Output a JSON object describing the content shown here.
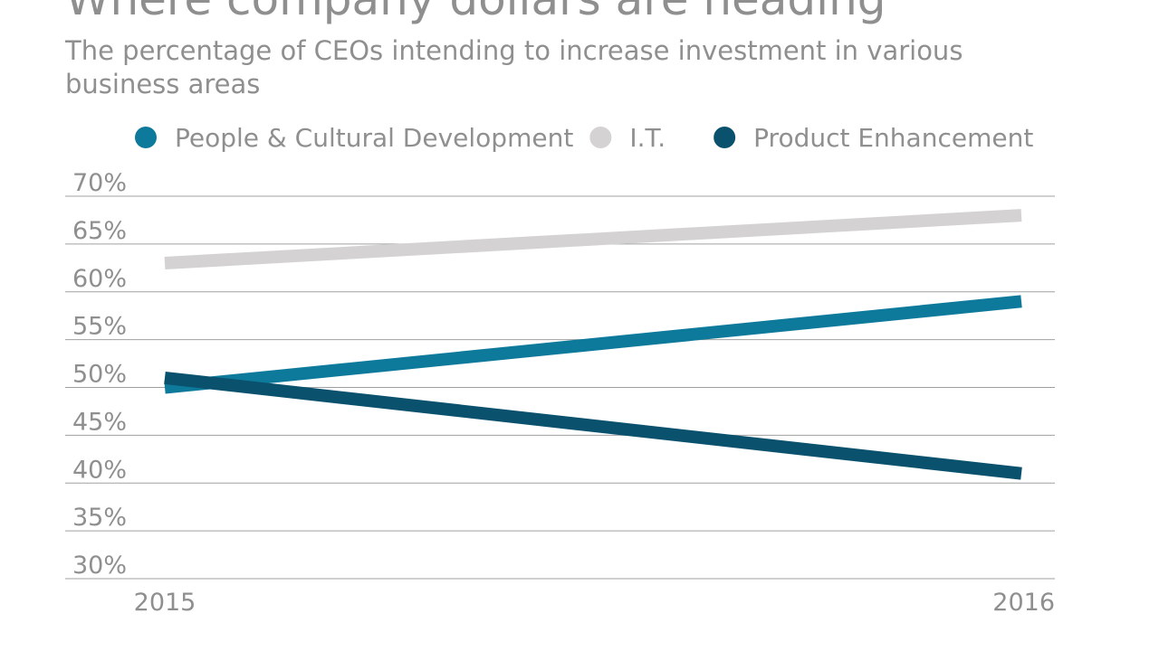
{
  "chart_data": {
    "type": "line",
    "title": "Where company dollars are heading",
    "subtitle": "The percentage of CEOs intending to increase investment in various business areas",
    "categories": [
      "2015",
      "2016"
    ],
    "series": [
      {
        "name": "People & Cultural Development",
        "color": "#0e7a9b",
        "values": [
          50,
          59
        ]
      },
      {
        "name": "I.T.",
        "color": "#d4d2d2",
        "values": [
          63,
          68
        ]
      },
      {
        "name": "Product Enhancement",
        "color": "#0a516e",
        "values": [
          51,
          41
        ]
      }
    ],
    "ylim": [
      30,
      70
    ],
    "yticks": [
      {
        "value": 30,
        "label": "30%"
      },
      {
        "value": 35,
        "label": "35%"
      },
      {
        "value": 40,
        "label": "40%"
      },
      {
        "value": 45,
        "label": "45%"
      },
      {
        "value": 50,
        "label": "50%"
      },
      {
        "value": 55,
        "label": "55%"
      },
      {
        "value": 60,
        "label": "60%"
      },
      {
        "value": 65,
        "label": "65%"
      },
      {
        "value": 70,
        "label": "70%"
      }
    ],
    "grid": true
  }
}
